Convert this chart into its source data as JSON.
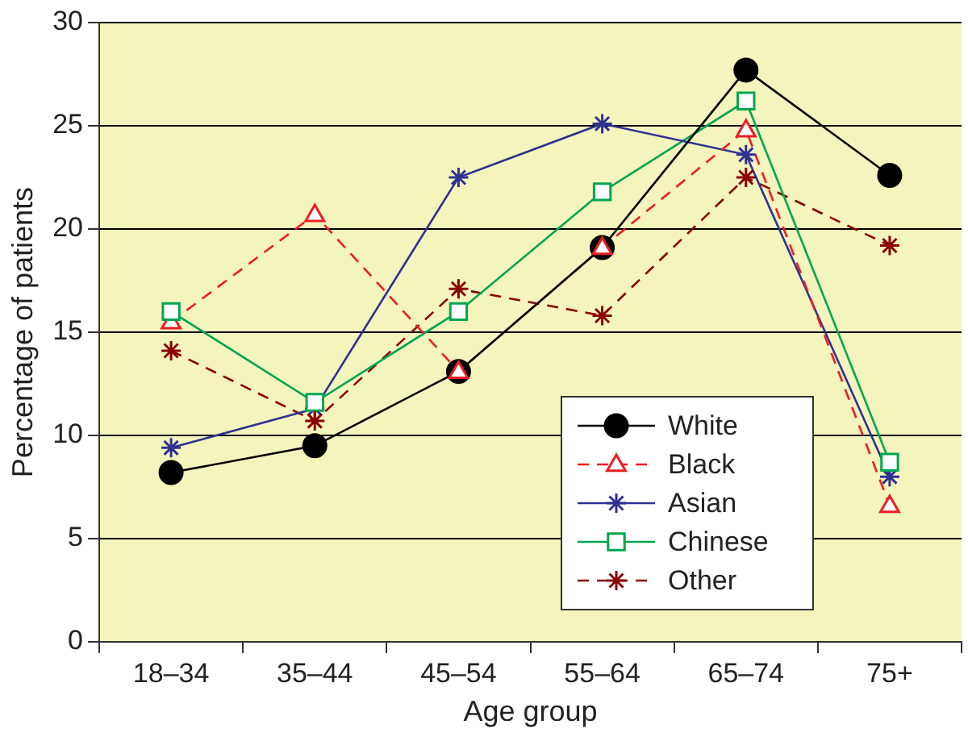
{
  "chart_data": {
    "type": "line",
    "xlabel": "Age group",
    "ylabel": "Percentage of patients",
    "categories": [
      "18–34",
      "35–44",
      "45–54",
      "55–64",
      "65–74",
      "75+"
    ],
    "series": [
      {
        "name": "White",
        "color": "#000000",
        "marker": "circle",
        "line_style": "solid",
        "values": [
          8.2,
          9.5,
          13.1,
          19.1,
          27.7,
          22.6
        ]
      },
      {
        "name": "Black",
        "color": "#ee1c25",
        "marker": "triangle",
        "line_style": "dashed",
        "values": [
          15.5,
          20.7,
          13.1,
          19.1,
          24.8,
          6.6
        ]
      },
      {
        "name": "Asian",
        "color": "#2e3192",
        "marker": "cross",
        "line_style": "solid",
        "values": [
          9.4,
          11.3,
          22.5,
          25.1,
          23.6,
          8.0
        ]
      },
      {
        "name": "Chinese",
        "color": "#00a651",
        "marker": "square",
        "line_style": "solid",
        "values": [
          16.0,
          11.6,
          16.0,
          21.8,
          26.2,
          8.7
        ]
      },
      {
        "name": "Other",
        "color": "#8b0000",
        "marker": "cross",
        "line_style": "dashed",
        "values": [
          14.1,
          10.7,
          17.1,
          15.8,
          22.5,
          19.2
        ]
      }
    ],
    "ylim": [
      0,
      30
    ],
    "yticks": [
      0,
      5,
      10,
      15,
      20,
      25,
      30
    ],
    "grid": "y",
    "legend": "bottom right"
  }
}
